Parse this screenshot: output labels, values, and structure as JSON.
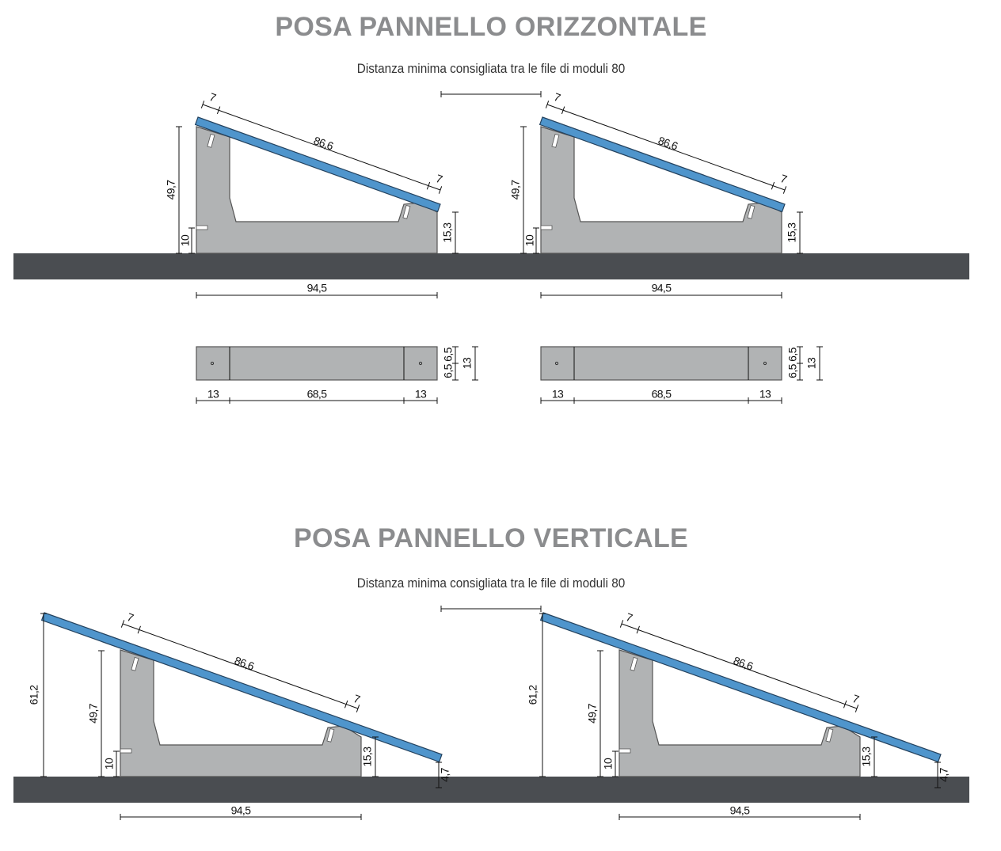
{
  "sections": [
    {
      "title": "POSA PANNELLO ORIZZONTALE",
      "subtitle": "Distanza minima consigliata tra le file di moduli 80",
      "dims": {
        "panel_length": "86,6",
        "panel_overhang": "7",
        "front_height": "49,7",
        "anchor_height": "10",
        "rear_height": "15,3",
        "base_length": "94,5"
      }
    },
    {
      "title": "POSA PANNELLO VERTICALE",
      "subtitle": "Distanza minima consigliata tra le file di moduli 80",
      "dims": {
        "panel_length": "86,6",
        "panel_overhang": "7",
        "front_height": "49,7",
        "anchor_height": "10",
        "rear_height": "15,3",
        "base_length": "94,5",
        "panel_top_height": "61,2",
        "panel_bottom_height": "4,7"
      }
    }
  ],
  "plan": {
    "end_length": "13",
    "middle_length": "68,5",
    "half_width": "6,5",
    "width": "13"
  },
  "colors": {
    "ground": "#4a4d51",
    "ballast": "#b1b3b4",
    "panel": "#4f95cc",
    "title": "#8b8c8e"
  }
}
